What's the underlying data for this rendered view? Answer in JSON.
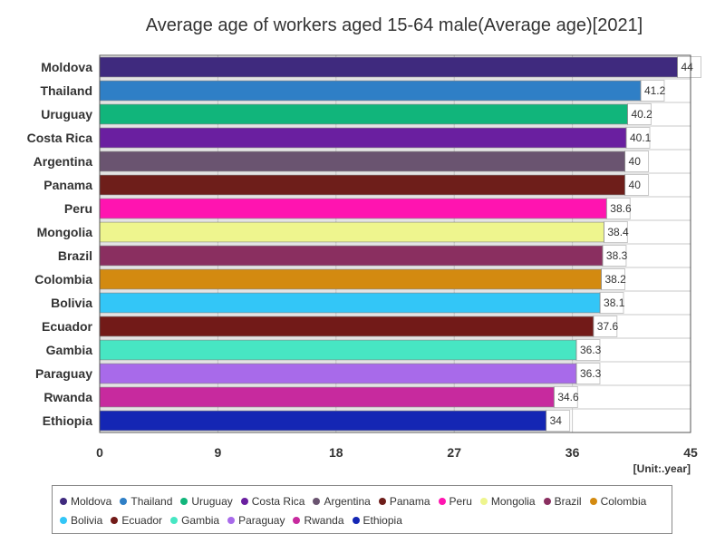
{
  "chart_data": {
    "type": "bar",
    "orientation": "horizontal",
    "title": "Average age of workers aged 15-64 male(Average age)[2021]",
    "unit_label": "[Unit:.year]",
    "xlim": [
      0,
      45
    ],
    "x_ticks": [
      "0",
      "9",
      "18",
      "27",
      "36",
      "45"
    ],
    "grid": true,
    "legend_position": "bottom",
    "categories": [
      "Moldova",
      "Thailand",
      "Uruguay",
      "Costa Rica",
      "Argentina",
      "Panama",
      "Peru",
      "Mongolia",
      "Brazil",
      "Colombia",
      "Bolivia",
      "Ecuador",
      "Gambia",
      "Paraguay",
      "Rwanda",
      "Ethiopia"
    ],
    "values": [
      44,
      41.2,
      40.2,
      40.1,
      40,
      40,
      38.6,
      38.4,
      38.3,
      38.2,
      38.1,
      37.6,
      36.3,
      36.3,
      34.6,
      34
    ],
    "value_labels": [
      "44",
      "41.2",
      "40.2",
      "40.1",
      "40",
      "40",
      "38.6",
      "38.4",
      "38.3",
      "38.2",
      "38.1",
      "37.6",
      "36.3",
      "36.3",
      "34.6",
      "34"
    ],
    "colors": [
      "#3f2a7e",
      "#2f7fc6",
      "#11b57b",
      "#6a1fa0",
      "#6a5470",
      "#6e1e1a",
      "#ff14b0",
      "#eef58e",
      "#8a2f60",
      "#d38a10",
      "#33c6f7",
      "#721a18",
      "#47e6c3",
      "#a86aea",
      "#c72a9e",
      "#1426b4"
    ]
  }
}
